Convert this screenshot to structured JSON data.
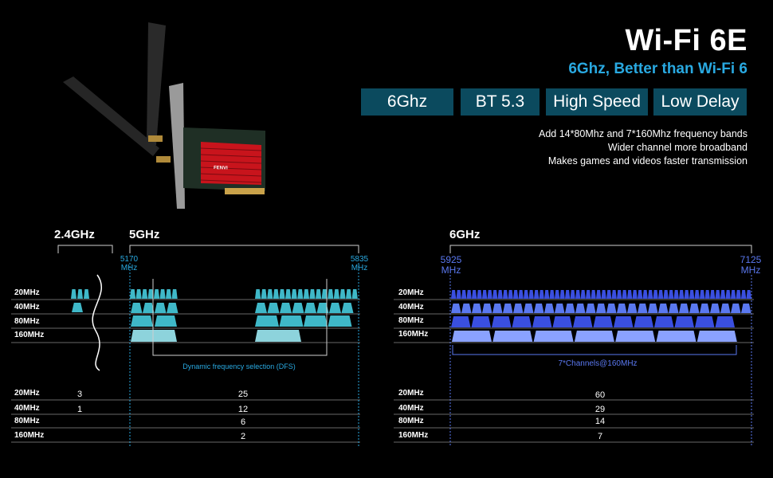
{
  "header": {
    "title": "Wi-Fi 6E",
    "subtitle": "6Ghz, Better than Wi-Fi 6",
    "pills": [
      "6Ghz",
      "BT 5.3",
      "High Speed",
      "Low Delay"
    ],
    "features": [
      "Add 14*80Mhz and 7*160Mhz frequency bands",
      "Wider channel more broadband",
      "Makes games and videos faster transmission"
    ],
    "product_brand": "FENVI"
  },
  "left_chart": {
    "band_24": "2.4GHz",
    "band_5": "5GHz",
    "freq_start": "5170 MHz",
    "freq_end": "5835 MHz",
    "dfs_note": "Dynamic frequency selection (DFS)",
    "rows": [
      "20MHz",
      "40MHz",
      "80MHz",
      "160MHz"
    ],
    "counts": [
      {
        "width": "20MHz",
        "ghz24": "3",
        "ghz5": "25"
      },
      {
        "width": "40MHz",
        "ghz24": "1",
        "ghz5": "12"
      },
      {
        "width": "80MHz",
        "ghz24": "",
        "ghz5": "6"
      },
      {
        "width": "160MHz",
        "ghz24": "",
        "ghz5": "2"
      }
    ]
  },
  "right_chart": {
    "band_6": "6GHz",
    "freq_start": "5925 MHz",
    "freq_end": "7125 MHz",
    "channels_note": "7*Channels@160MHz",
    "rows": [
      "20MHz",
      "40MHz",
      "80MHz",
      "160MHz"
    ],
    "counts": [
      {
        "width": "20MHz",
        "ghz6": "60"
      },
      {
        "width": "40MHz",
        "ghz6": "29"
      },
      {
        "width": "80MHz",
        "ghz6": "14"
      },
      {
        "width": "160MHz",
        "ghz6": "7"
      }
    ]
  },
  "colors": {
    "accent_blue": "#29a9e1",
    "pill_bg": "#0b4a5e",
    "teal": "#3fb8c8",
    "sixghz_blue": "#3a4fe0",
    "sixghz_light": "#5a78f0"
  }
}
